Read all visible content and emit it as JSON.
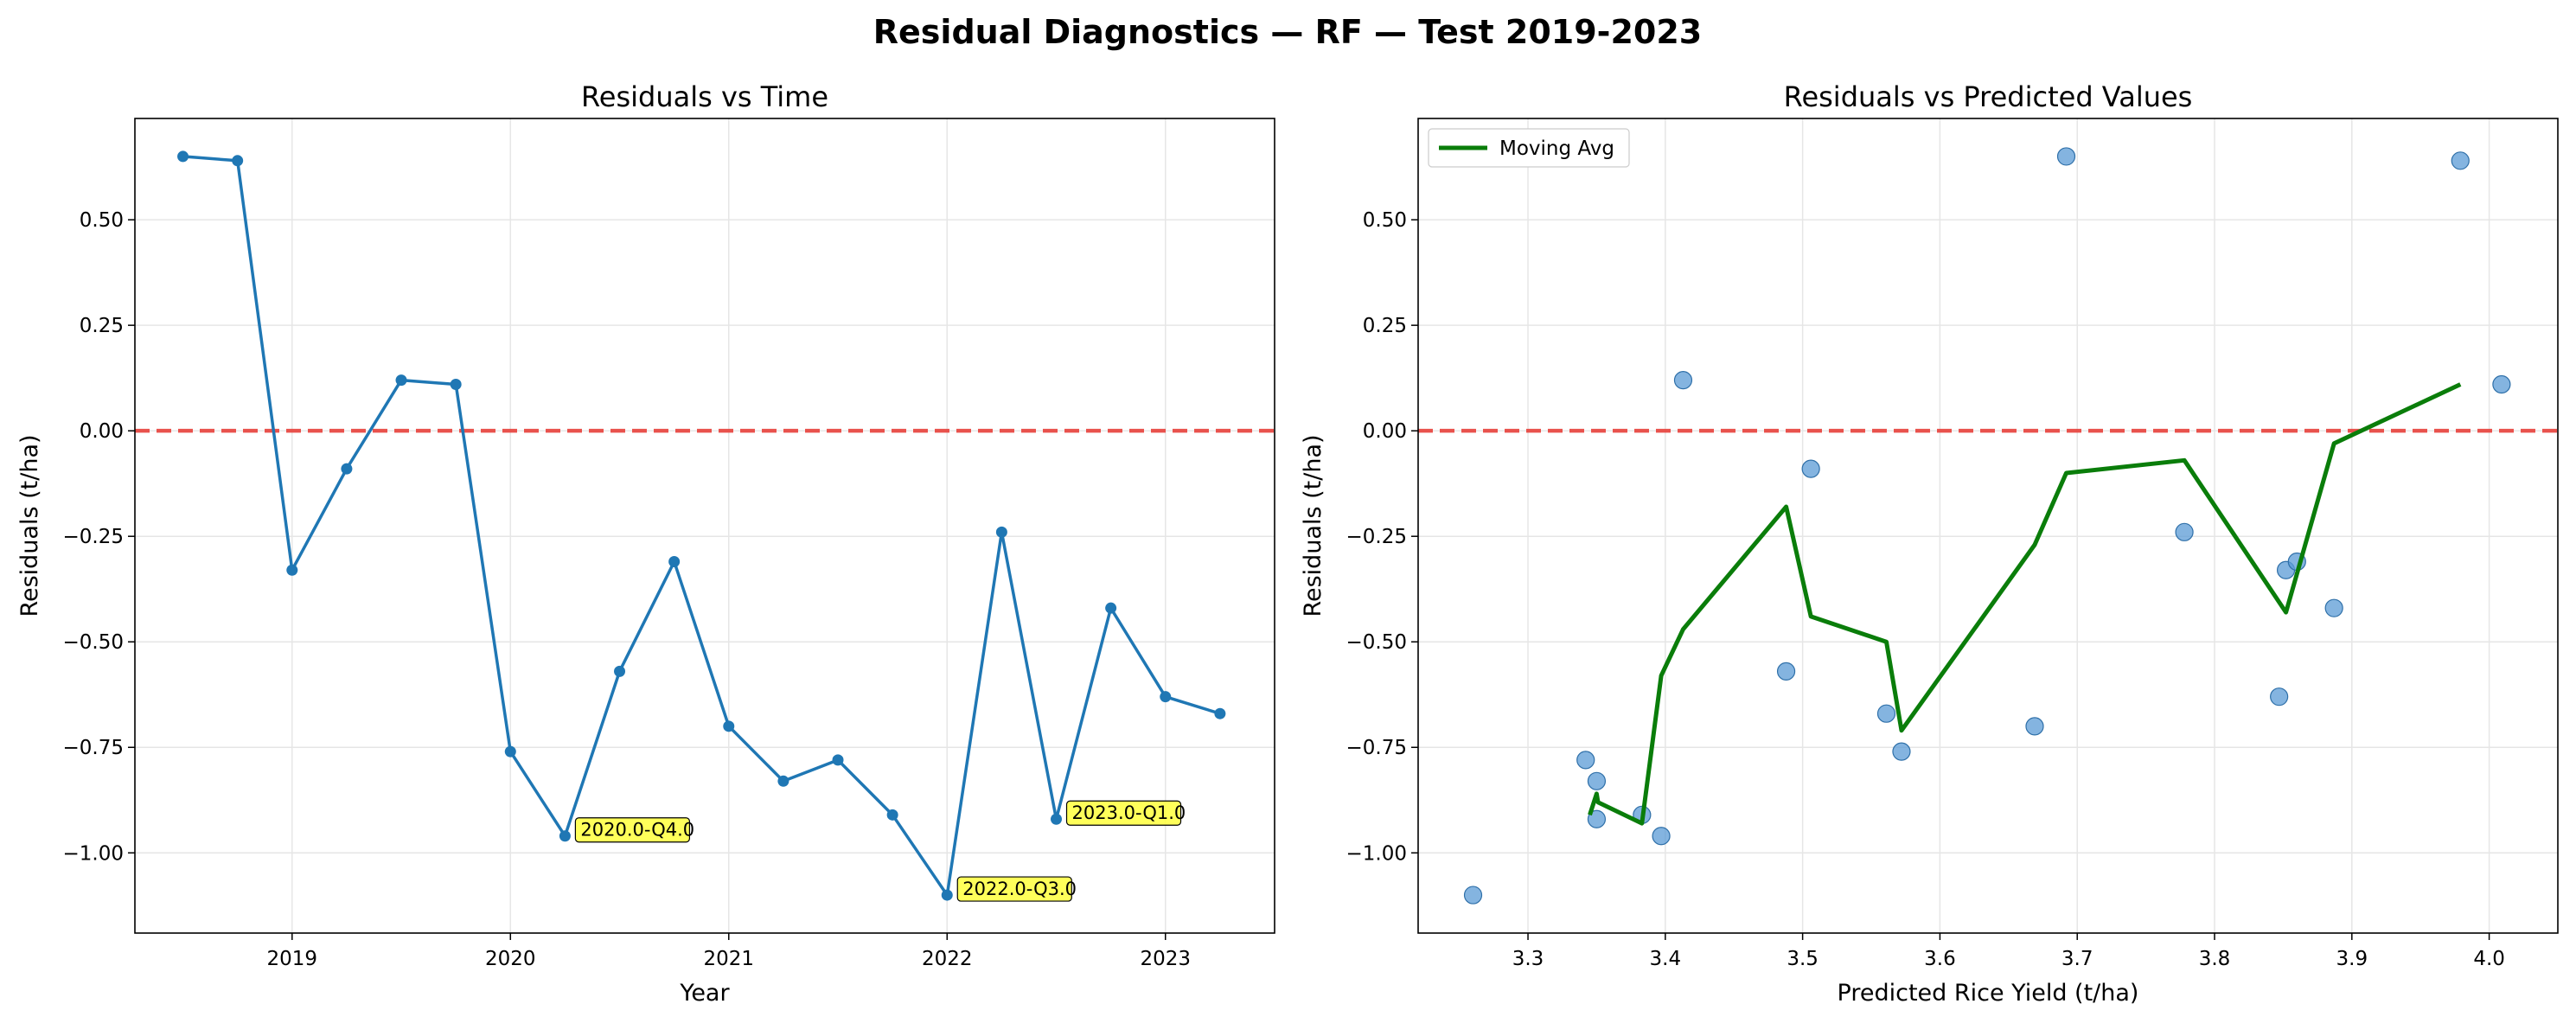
{
  "figure": {
    "suptitle": "Residual Diagnostics — RF — Test 2019-2023"
  },
  "chart_data": [
    {
      "type": "line",
      "title": "Residuals vs Time",
      "xlabel": "Year",
      "ylabel": "Residuals (t/ha)",
      "xlim": [
        2018.28,
        2023.5
      ],
      "ylim": [
        -1.19,
        0.74
      ],
      "xticks": [
        2019,
        2020,
        2021,
        2022,
        2023
      ],
      "xtick_labels": [
        "2019",
        "2020",
        "2021",
        "2022",
        "2023"
      ],
      "yticks": [
        -1.0,
        -0.75,
        -0.5,
        -0.25,
        0.0,
        0.25,
        0.5
      ],
      "ytick_labels": [
        "−1.00",
        "−0.75",
        "−0.50",
        "−0.25",
        "0.00",
        "0.25",
        "0.50"
      ],
      "grid": true,
      "reference_line": {
        "y": 0,
        "color": "#e8413b",
        "style": "dashed"
      },
      "series": [
        {
          "color": "#1f77b4",
          "x": [
            2018.5,
            2018.75,
            2019.0,
            2019.25,
            2019.5,
            2019.75,
            2020.0,
            2020.25,
            2020.5,
            2020.75,
            2021.0,
            2021.25,
            2021.5,
            2021.75,
            2022.0,
            2022.25,
            2022.5,
            2022.75,
            2023.0,
            2023.25
          ],
          "y": [
            0.65,
            0.64,
            -0.33,
            -0.09,
            0.12,
            0.11,
            -0.76,
            -0.96,
            -0.57,
            -0.31,
            -0.7,
            -0.83,
            -0.78,
            -0.91,
            -1.1,
            -0.24,
            -0.92,
            -0.42,
            -0.63,
            -0.67
          ]
        }
      ],
      "annotations": [
        {
          "text": "2020.0-Q4.0",
          "x": 2020.25,
          "y": -0.96
        },
        {
          "text": "2022.0-Q3.0",
          "x": 2022.0,
          "y": -1.1
        },
        {
          "text": "2023.0-Q1.0",
          "x": 2022.5,
          "y": -0.92
        }
      ]
    },
    {
      "type": "scatter",
      "title": "Residuals vs Predicted Values",
      "xlabel": "Predicted Rice Yield (t/ha)",
      "ylabel": "Residuals (t/ha)",
      "xlim": [
        3.22,
        4.05
      ],
      "ylim": [
        -1.19,
        0.74
      ],
      "xticks": [
        3.3,
        3.4,
        3.5,
        3.6,
        3.7,
        3.8,
        3.9,
        4.0
      ],
      "xtick_labels": [
        "3.3",
        "3.4",
        "3.5",
        "3.6",
        "3.7",
        "3.8",
        "3.9",
        "4.0"
      ],
      "yticks": [
        -1.0,
        -0.75,
        -0.5,
        -0.25,
        0.0,
        0.25,
        0.5
      ],
      "ytick_labels": [
        "−1.00",
        "−0.75",
        "−0.50",
        "−0.25",
        "0.00",
        "0.25",
        "0.50"
      ],
      "grid": true,
      "legend": {
        "placement": "top-left",
        "entries": [
          "Moving Avg"
        ]
      },
      "reference_line": {
        "y": 0,
        "color": "#e8413b",
        "style": "dashed"
      },
      "points": {
        "color": "#5b9bd5",
        "x": [
          3.26,
          3.342,
          3.35,
          3.35,
          3.383,
          3.397,
          3.413,
          3.488,
          3.506,
          3.561,
          3.572,
          3.669,
          3.692,
          3.778,
          3.847,
          3.852,
          3.86,
          3.887,
          3.979,
          4.009
        ],
        "y": [
          -1.1,
          -0.78,
          -0.83,
          -0.92,
          -0.91,
          -0.96,
          0.12,
          -0.57,
          -0.09,
          -0.67,
          -0.76,
          -0.7,
          0.65,
          -0.24,
          -0.63,
          -0.33,
          -0.31,
          -0.42,
          0.64,
          0.11
        ]
      },
      "moving_avg": {
        "name": "Moving Avg",
        "color": "#0a7d0a",
        "x": [
          3.345,
          3.35,
          3.351,
          3.383,
          3.397,
          3.413,
          3.488,
          3.506,
          3.561,
          3.572,
          3.669,
          3.692,
          3.778,
          3.852,
          3.887,
          3.979
        ],
        "y": [
          -0.91,
          -0.86,
          -0.88,
          -0.93,
          -0.58,
          -0.47,
          -0.18,
          -0.44,
          -0.5,
          -0.71,
          -0.27,
          -0.1,
          -0.07,
          -0.43,
          -0.03,
          0.11
        ]
      }
    }
  ]
}
